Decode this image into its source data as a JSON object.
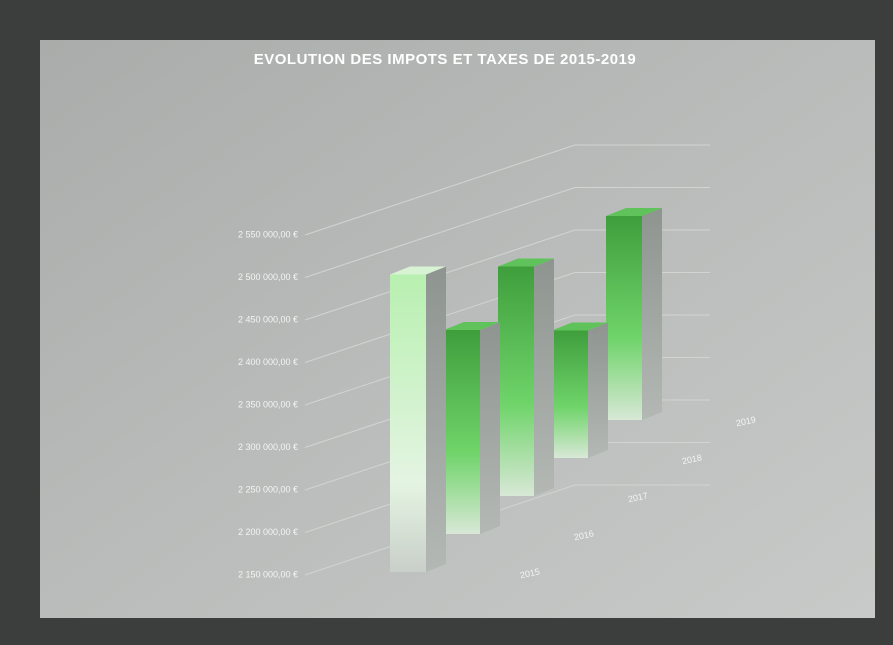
{
  "chart_data": {
    "type": "bar3d",
    "title": "EVOLUTION DES IMPOTS ET TAXES DE 2015-2019",
    "categories": [
      "2015",
      "2016",
      "2017",
      "2018",
      "2019"
    ],
    "values": [
      2500000,
      2390000,
      2420000,
      2300000,
      2390000
    ],
    "color": "#5fc25a",
    "ylim": [
      2150000,
      2550000
    ],
    "yticks": [
      {
        "value": 2150000,
        "label": "2 150 000,00 €"
      },
      {
        "value": 2200000,
        "label": "2 200 000,00 €"
      },
      {
        "value": 2250000,
        "label": "2 250 000,00 €"
      },
      {
        "value": 2300000,
        "label": "2 300 000,00 €"
      },
      {
        "value": 2350000,
        "label": "2 350 000,00 €"
      },
      {
        "value": 2400000,
        "label": "2 400 000,00 €"
      },
      {
        "value": 2450000,
        "label": "2 450 000,00 €"
      },
      {
        "value": 2500000,
        "label": "2 500 000,00 €"
      },
      {
        "value": 2550000,
        "label": "2 550 000,00 €"
      }
    ],
    "grid": true
  }
}
